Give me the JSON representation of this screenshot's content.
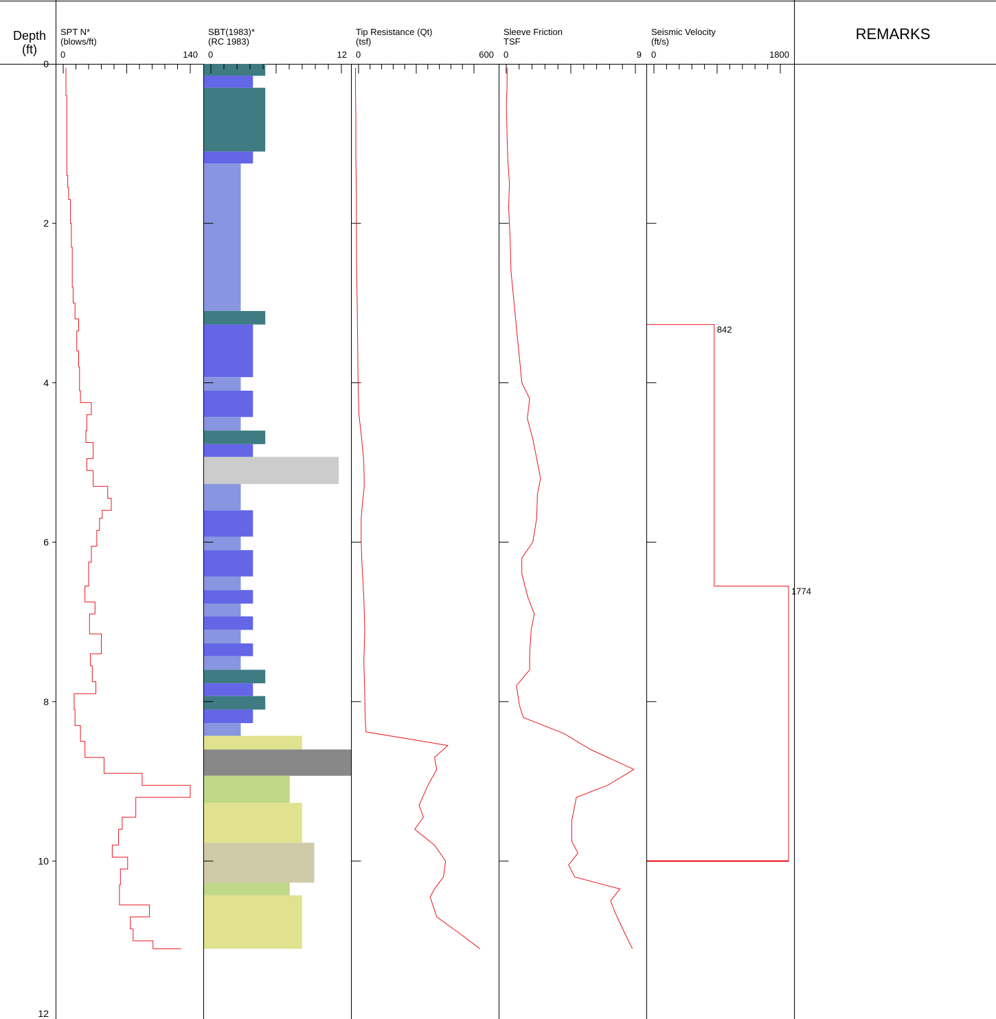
{
  "header": {
    "depth_label": "Depth",
    "depth_unit": "(ft)",
    "remarks_label": "REMARKS"
  },
  "depth_axis": {
    "ticks": [
      "0",
      "2",
      "4",
      "6",
      "8",
      "10",
      "12"
    ],
    "range": [
      0,
      12
    ]
  },
  "columns": {
    "spt": {
      "title": "SPT N*",
      "unit": "(blows/ft)",
      "min_label": "0",
      "max_label": "140",
      "range": [
        0,
        140
      ]
    },
    "sbt": {
      "title": "SBT(1983)*",
      "unit": "(RC 1983)",
      "min_label": "0",
      "max_label": "12",
      "range": [
        0,
        12
      ]
    },
    "tip": {
      "title": "Tip Resistance (Qt)",
      "unit": "(tsf)",
      "min_label": "0",
      "max_label": "600",
      "range": [
        0,
        600
      ]
    },
    "sleeve": {
      "title": "Sleeve Friction",
      "unit": "TSF",
      "min_label": "0",
      "max_label": "9",
      "range": [
        0,
        9
      ]
    },
    "seismic": {
      "title": "Seismic Velocity",
      "unit": "(ft/s)",
      "min_label": "0",
      "max_label": "1800",
      "range": [
        0,
        1800
      ]
    }
  },
  "colors": {
    "line": "#e8141c",
    "sbt_3": "#3f7b83",
    "sbt_4": "#6366e6",
    "sbt_5": "#8895e0",
    "sbt_6": "#e0e28f",
    "sbt_7": "#c1d78a",
    "sbt_8": "#cfcaa8",
    "sbt_9": "#cccccc",
    "sbt_10": "#888888"
  },
  "chart_data": {
    "type": "line",
    "y_axis": "Depth (ft)",
    "spt_n": {
      "type": "step",
      "points": [
        [
          0.05,
          3
        ],
        [
          0.15,
          3
        ],
        [
          0.4,
          4
        ],
        [
          0.6,
          4
        ],
        [
          0.9,
          4
        ],
        [
          1.2,
          4
        ],
        [
          1.4,
          5
        ],
        [
          1.55,
          6
        ],
        [
          1.7,
          8
        ],
        [
          2.0,
          9
        ],
        [
          2.3,
          10
        ],
        [
          2.6,
          10
        ],
        [
          2.8,
          11
        ],
        [
          3.0,
          13
        ],
        [
          3.2,
          17
        ],
        [
          3.35,
          15
        ],
        [
          3.6,
          17
        ],
        [
          3.8,
          18
        ],
        [
          4.1,
          19
        ],
        [
          4.25,
          31
        ],
        [
          4.4,
          26
        ],
        [
          4.6,
          25
        ],
        [
          4.75,
          33
        ],
        [
          4.95,
          26
        ],
        [
          5.1,
          33
        ],
        [
          5.3,
          49
        ],
        [
          5.45,
          53
        ],
        [
          5.6,
          43
        ],
        [
          5.7,
          40
        ],
        [
          5.85,
          37
        ],
        [
          6.05,
          31
        ],
        [
          6.25,
          28
        ],
        [
          6.55,
          24
        ],
        [
          6.75,
          35
        ],
        [
          6.9,
          29
        ],
        [
          7.15,
          42
        ],
        [
          7.4,
          30
        ],
        [
          7.55,
          32
        ],
        [
          7.75,
          36
        ],
        [
          7.9,
          12
        ],
        [
          8.1,
          13
        ],
        [
          8.3,
          19
        ],
        [
          8.5,
          24
        ],
        [
          8.7,
          45
        ],
        [
          8.9,
          87
        ],
        [
          9.05,
          140
        ],
        [
          9.2,
          80
        ],
        [
          9.45,
          65
        ],
        [
          9.6,
          61
        ],
        [
          9.8,
          54
        ],
        [
          9.95,
          71
        ],
        [
          10.1,
          63
        ],
        [
          10.3,
          62
        ],
        [
          10.55,
          95
        ],
        [
          10.7,
          74
        ],
        [
          10.85,
          77
        ],
        [
          11.0,
          99
        ],
        [
          11.1,
          130
        ]
      ]
    },
    "sbt_layers": [
      {
        "from": 0.0,
        "to": 0.15,
        "zone": 3
      },
      {
        "from": 0.15,
        "to": 0.3,
        "zone": 4
      },
      {
        "from": 0.3,
        "to": 1.1,
        "zone": 3
      },
      {
        "from": 1.1,
        "to": 1.25,
        "zone": 4
      },
      {
        "from": 1.25,
        "to": 3.1,
        "zone": 5
      },
      {
        "from": 3.1,
        "to": 3.27,
        "zone": 3
      },
      {
        "from": 3.27,
        "to": 3.93,
        "zone": 4
      },
      {
        "from": 3.93,
        "to": 4.1,
        "zone": 5
      },
      {
        "from": 4.1,
        "to": 4.43,
        "zone": 4
      },
      {
        "from": 4.43,
        "to": 4.6,
        "zone": 5
      },
      {
        "from": 4.6,
        "to": 4.77,
        "zone": 3
      },
      {
        "from": 4.77,
        "to": 4.93,
        "zone": 4
      },
      {
        "from": 4.93,
        "to": 5.27,
        "zone": 9
      },
      {
        "from": 5.27,
        "to": 5.6,
        "zone": 5
      },
      {
        "from": 5.6,
        "to": 5.93,
        "zone": 4
      },
      {
        "from": 5.93,
        "to": 6.1,
        "zone": 5
      },
      {
        "from": 6.1,
        "to": 6.43,
        "zone": 4
      },
      {
        "from": 6.43,
        "to": 6.6,
        "zone": 5
      },
      {
        "from": 6.6,
        "to": 6.77,
        "zone": 4
      },
      {
        "from": 6.77,
        "to": 6.93,
        "zone": 5
      },
      {
        "from": 6.93,
        "to": 7.1,
        "zone": 4
      },
      {
        "from": 7.1,
        "to": 7.27,
        "zone": 5
      },
      {
        "from": 7.27,
        "to": 7.43,
        "zone": 4
      },
      {
        "from": 7.43,
        "to": 7.6,
        "zone": 5
      },
      {
        "from": 7.6,
        "to": 7.77,
        "zone": 3
      },
      {
        "from": 7.77,
        "to": 7.93,
        "zone": 4
      },
      {
        "from": 7.93,
        "to": 8.1,
        "zone": 3
      },
      {
        "from": 8.1,
        "to": 8.27,
        "zone": 4
      },
      {
        "from": 8.27,
        "to": 8.43,
        "zone": 5
      },
      {
        "from": 8.43,
        "to": 8.6,
        "zone": 6
      },
      {
        "from": 8.6,
        "to": 8.93,
        "zone": 10
      },
      {
        "from": 8.93,
        "to": 9.27,
        "zone": 7
      },
      {
        "from": 9.27,
        "to": 9.77,
        "zone": 6
      },
      {
        "from": 9.77,
        "to": 10.27,
        "zone": 8
      },
      {
        "from": 10.27,
        "to": 10.43,
        "zone": 7
      },
      {
        "from": 10.43,
        "to": 11.1,
        "zone": 6
      }
    ],
    "sbt_zone_values": {
      "3": 5.0,
      "4": 4.0,
      "5": 3.0,
      "6": 8.0,
      "7": 7.0,
      "8": 9.0,
      "9": 11.0,
      "10": 12.0
    },
    "tip_resistance": [
      [
        0.05,
        17
      ],
      [
        0.3,
        17
      ],
      [
        0.7,
        19
      ],
      [
        1.2,
        19
      ],
      [
        1.6,
        21
      ],
      [
        2.0,
        21
      ],
      [
        2.5,
        22
      ],
      [
        3.0,
        25
      ],
      [
        3.5,
        27
      ],
      [
        4.0,
        29
      ],
      [
        4.4,
        33
      ],
      [
        4.7,
        45
      ],
      [
        5.0,
        55
      ],
      [
        5.3,
        57
      ],
      [
        5.5,
        49
      ],
      [
        5.7,
        43
      ],
      [
        6.0,
        43
      ],
      [
        6.3,
        47
      ],
      [
        6.7,
        55
      ],
      [
        7.1,
        59
      ],
      [
        7.5,
        55
      ],
      [
        7.9,
        59
      ],
      [
        8.2,
        61
      ],
      [
        8.38,
        65
      ],
      [
        8.55,
        435
      ],
      [
        8.7,
        375
      ],
      [
        8.85,
        385
      ],
      [
        9.05,
        345
      ],
      [
        9.3,
        305
      ],
      [
        9.45,
        325
      ],
      [
        9.6,
        285
      ],
      [
        9.8,
        375
      ],
      [
        10.0,
        425
      ],
      [
        10.2,
        415
      ],
      [
        10.35,
        375
      ],
      [
        10.45,
        355
      ],
      [
        10.7,
        385
      ],
      [
        10.9,
        485
      ],
      [
        11.1,
        580
      ]
    ],
    "sleeve_friction": [
      [
        0.05,
        0.45
      ],
      [
        0.3,
        0.45
      ],
      [
        0.5,
        0.4
      ],
      [
        0.9,
        0.45
      ],
      [
        1.2,
        0.5
      ],
      [
        1.5,
        0.6
      ],
      [
        1.8,
        0.55
      ],
      [
        2.2,
        0.65
      ],
      [
        2.6,
        0.7
      ],
      [
        3.0,
        0.9
      ],
      [
        3.4,
        1.1
      ],
      [
        3.8,
        1.3
      ],
      [
        4.0,
        1.4
      ],
      [
        4.2,
        1.9
      ],
      [
        4.45,
        1.75
      ],
      [
        4.7,
        2.1
      ],
      [
        5.0,
        2.4
      ],
      [
        5.2,
        2.6
      ],
      [
        5.4,
        2.4
      ],
      [
        5.7,
        2.35
      ],
      [
        6.0,
        2.1
      ],
      [
        6.2,
        1.4
      ],
      [
        6.4,
        1.4
      ],
      [
        6.7,
        1.8
      ],
      [
        6.9,
        2.2
      ],
      [
        7.1,
        2.0
      ],
      [
        7.4,
        1.9
      ],
      [
        7.6,
        1.9
      ],
      [
        7.8,
        1.05
      ],
      [
        8.05,
        1.25
      ],
      [
        8.2,
        1.5
      ],
      [
        8.4,
        4.1
      ],
      [
        8.6,
        5.8
      ],
      [
        8.85,
        8.6
      ],
      [
        9.05,
        6.9
      ],
      [
        9.2,
        4.9
      ],
      [
        9.5,
        4.6
      ],
      [
        9.75,
        4.6
      ],
      [
        9.9,
        5.0
      ],
      [
        10.05,
        4.4
      ],
      [
        10.2,
        4.8
      ],
      [
        10.35,
        7.7
      ],
      [
        10.5,
        7.1
      ],
      [
        10.65,
        7.4
      ],
      [
        10.9,
        8.0
      ],
      [
        11.1,
        8.5
      ]
    ],
    "seismic_velocity": {
      "type": "step",
      "segments": [
        {
          "from": 3.27,
          "to": 6.55,
          "value": 842
        },
        {
          "from": 6.55,
          "to": 10.0,
          "value": 1774
        }
      ],
      "labels": [
        "842",
        "1774"
      ]
    }
  }
}
